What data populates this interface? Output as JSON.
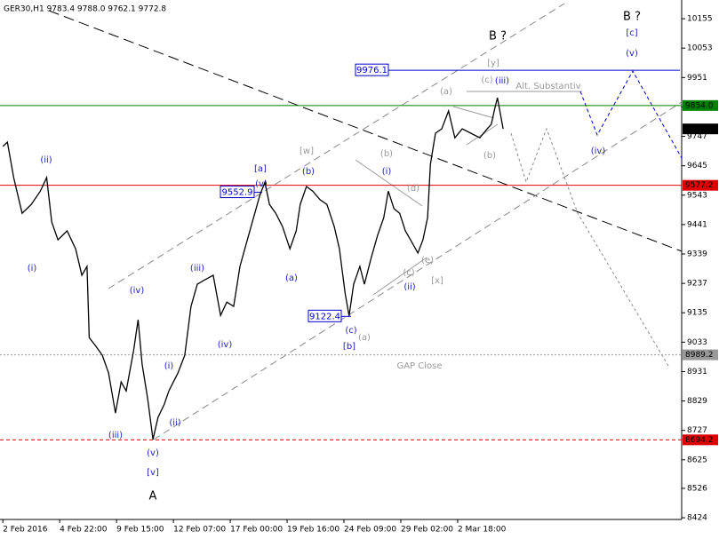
{
  "chart_data": {
    "type": "line",
    "title": "GER30,H1  9783.4 9788.0 9762.1 9772.8",
    "x": [
      0,
      0.08,
      0.19,
      0.34,
      0.5,
      0.66,
      0.77,
      0.86,
      0.97,
      1.13,
      1.28,
      1.39,
      1.48,
      1.52,
      1.64,
      1.75,
      1.86,
      1.98,
      2.08,
      2.17,
      2.3,
      2.38,
      2.45,
      2.55,
      2.64,
      2.73,
      2.84,
      2.92,
      3.08,
      3.2,
      3.31,
      3.42,
      3.55,
      3.7,
      3.83,
      3.94,
      4.06,
      4.17,
      4.3,
      4.41,
      4.52,
      4.61,
      4.69,
      4.8,
      4.92,
      5.05,
      5.16,
      5.23,
      5.34,
      5.45,
      5.58,
      5.7,
      5.83,
      5.92,
      6.02,
      6.09,
      6.17,
      6.28,
      6.36,
      6.48,
      6.59,
      6.7,
      6.78,
      6.88,
      6.98,
      7.08,
      7.17,
      7.3,
      7.39,
      7.47,
      7.52,
      7.61,
      7.72,
      7.84,
      7.95,
      8.08,
      8.23,
      8.39,
      8.52,
      8.59,
      8.66,
      8.7,
      8.8
    ],
    "series": [
      {
        "color": "#000000",
        "values": [
          9712,
          9727,
          9604,
          9480,
          9511,
          9557,
          9604,
          9450,
          9388,
          9419,
          9357,
          9265,
          9296,
          9049,
          9018,
          8988,
          8926,
          8787,
          8895,
          8864,
          9003,
          9111,
          8957,
          8834,
          8696,
          8772,
          8818,
          8864,
          8926,
          8988,
          9157,
          9234,
          9249,
          9265,
          9126,
          9172,
          9157,
          9296,
          9388,
          9465,
          9542,
          9588,
          9511,
          9480,
          9434,
          9357,
          9419,
          9511,
          9573,
          9557,
          9527,
          9511,
          9434,
          9357,
          9203,
          9124,
          9234,
          9296,
          9234,
          9326,
          9403,
          9465,
          9557,
          9496,
          9480,
          9419,
          9388,
          9342,
          9388,
          9465,
          9650,
          9758,
          9773,
          9835,
          9742,
          9773,
          9758,
          9742,
          9773,
          9788,
          9850,
          9881,
          9773
        ]
      }
    ],
    "xlim": [
      -0.05,
      11.94
    ],
    "xticks": [
      {
        "value": 0,
        "label": "2 Feb 2016"
      },
      {
        "value": 1,
        "label": "4 Feb 22:00"
      },
      {
        "value": 2,
        "label": "9 Feb 15:00"
      },
      {
        "value": 3,
        "label": "12 Feb 07:00"
      },
      {
        "value": 4,
        "label": "17 Feb 00:00"
      },
      {
        "value": 5,
        "label": "19 Feb 16:00"
      },
      {
        "value": 6,
        "label": "24 Feb 09:00"
      },
      {
        "value": 7,
        "label": "29 Feb 02:00"
      },
      {
        "value": 8,
        "label": "2 Mar 18:00"
      }
    ],
    "ylim": [
      8418,
      10220
    ],
    "yticks": [
      10155,
      10053,
      9951,
      9849,
      9747,
      9645,
      9543,
      9441,
      9339,
      9237,
      9135,
      9033,
      8931,
      8829,
      8727,
      8625,
      8526,
      8424
    ],
    "levels": [
      {
        "value": 9854.0,
        "label": "9854.0",
        "color": "#008000",
        "style": "solid"
      },
      {
        "value": 9772.8,
        "color": "#000000",
        "style": "none"
      },
      {
        "value": 9577.2,
        "color": "#e00000",
        "style": "solid"
      },
      {
        "value": 8989.2,
        "color": "#999999",
        "style": "dotted"
      },
      {
        "value": 8694.2,
        "color": "#e00000",
        "style": "dashed"
      }
    ],
    "price_marks": [
      9976.1,
      9552.9,
      9122.4
    ],
    "price_mark_color": "#0000cc",
    "annotations": [
      {
        "text": "(ii)",
        "color": "#2020c0"
      },
      {
        "text": "(i)",
        "color": "#2020c0"
      },
      {
        "text": "(iv)",
        "color": "#2020c0"
      },
      {
        "text": "(iii)",
        "color": "#2020c0"
      },
      {
        "text": "(v)",
        "color": "#2020c0"
      },
      {
        "text": "[v]",
        "color": "#2020c0"
      },
      {
        "text": "(i)",
        "color": "#2020c0"
      },
      {
        "text": "(ii)",
        "color": "#2020c0"
      },
      {
        "text": "(iii)",
        "color": "#2020c0"
      },
      {
        "text": "(iv)",
        "color": "#2020c0"
      },
      {
        "text": "[a]",
        "color": "#2020c0"
      },
      {
        "text": "(v)",
        "color": "#2020c0"
      },
      {
        "text": "(b)",
        "color": "#2020c0"
      },
      {
        "text": "(a)",
        "color": "#2020c0"
      },
      {
        "text": "(c)",
        "color": "#2020c0"
      },
      {
        "text": "[b]",
        "color": "#2020c0"
      },
      {
        "text": "(i)",
        "color": "#2020c0"
      },
      {
        "text": "(ii)",
        "color": "#2020c0"
      },
      {
        "text": "(iii)",
        "color": "#2020c0"
      },
      {
        "text": "(v)",
        "color": "#2020c0"
      },
      {
        "text": "(iv)",
        "color": "#2020c0"
      },
      {
        "text": "[c]",
        "color": "#2020c0"
      },
      {
        "text": "[w]",
        "color": "#999999"
      },
      {
        "text": "(b)",
        "color": "#999999"
      },
      {
        "text": "(d)",
        "color": "#999999"
      },
      {
        "text": "(e)",
        "color": "#999999"
      },
      {
        "text": "(c)",
        "color": "#999999"
      },
      {
        "text": "[x]",
        "color": "#999999"
      },
      {
        "text": "(a)",
        "color": "#999999"
      },
      {
        "text": "(a)",
        "color": "#999999"
      },
      {
        "text": "(c)",
        "color": "#999999"
      },
      {
        "text": "[y]",
        "color": "#999999"
      },
      {
        "text": "(b)",
        "color": "#999999"
      },
      {
        "text": "Alt. Substantiv",
        "color": "#999999"
      },
      {
        "text": "GAP Close",
        "color": "#999999"
      },
      {
        "text": "B ?",
        "color": "#000000"
      },
      {
        "text": "B ?",
        "color": "#000000"
      },
      {
        "text": "A",
        "color": "#000000"
      }
    ]
  }
}
